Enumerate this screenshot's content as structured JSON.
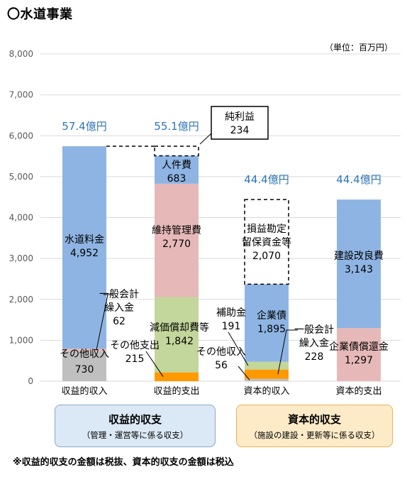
{
  "header": {
    "title": "〇水道事業",
    "unit_label": "（単位：百万円）",
    "footnote": "※収益的収支の金額は税抜、資本的収支の金額は税込"
  },
  "captions": {
    "left": {
      "title": "収益的収支",
      "subtitle": "（管理・運営等に係る収支）"
    },
    "right": {
      "title": "資本的収支",
      "subtitle": "（施設の建設・更新等に係る収支）"
    }
  },
  "colors": {
    "blue": "#8eb4e3",
    "pink": "#e6b9b8",
    "green": "#c3d69b",
    "orange": "#ff9900",
    "gray": "#bfbfbf",
    "total_label": "#2e75b6",
    "grid": "#d9d9d9",
    "axis_text": "#595959"
  },
  "chart_data": {
    "type": "bar",
    "stacked": true,
    "ylim": [
      0,
      8000
    ],
    "yticks": [
      0,
      1000,
      2000,
      3000,
      4000,
      5000,
      6000,
      7000,
      8000
    ],
    "ytick_labels": [
      "0",
      "1,000",
      "2,000",
      "3,000",
      "4,000",
      "5,000",
      "6,000",
      "7,000",
      "8,000"
    ],
    "grid": true,
    "categories": [
      "収益的収入",
      "収益的支出",
      "資本的収入",
      "資本的支出"
    ],
    "totals": [
      "57.4億円",
      "55.1億円",
      "44.4億円",
      "44.4億円"
    ],
    "stacks": [
      [
        {
          "label": "その他収入",
          "value": 730,
          "color": "gray"
        },
        {
          "label": "一般会計繰入金",
          "value": 62,
          "color": "pink"
        },
        {
          "label": "水道料金",
          "value": 4952,
          "color": "blue"
        }
      ],
      [
        {
          "label": "その他支出",
          "value": 215,
          "color": "orange"
        },
        {
          "label": "減価償却費等",
          "value": 1842,
          "color": "green"
        },
        {
          "label": "維持管理費",
          "value": 2770,
          "color": "pink"
        },
        {
          "label": "人件費",
          "value": 683,
          "color": "blue"
        },
        {
          "label": "純利益",
          "value": 234,
          "color": "none"
        }
      ],
      [
        {
          "label": "その他収入",
          "value": 56,
          "color": "gray"
        },
        {
          "label": "一般会計繰入金",
          "value": 228,
          "color": "orange"
        },
        {
          "label": "補助金",
          "value": 191,
          "color": "green"
        },
        {
          "label": "企業債",
          "value": 1895,
          "color": "blue"
        },
        {
          "label": "損益勘定留保資金等",
          "value": 2070,
          "color": "none"
        }
      ],
      [
        {
          "label": "企業債償還金",
          "value": 1297,
          "color": "pink"
        },
        {
          "label": "建設改良費",
          "value": 3143,
          "color": "blue"
        }
      ]
    ],
    "annotations": [
      {
        "lines": [
          "水道料金",
          "4,952"
        ]
      },
      {
        "lines": [
          "一般会計",
          "繰入金",
          "62"
        ]
      },
      {
        "lines": [
          "その他収入",
          "730"
        ]
      },
      {
        "lines": [
          "人件費",
          "683"
        ]
      },
      {
        "lines": [
          "維持管理費",
          "2,770"
        ]
      },
      {
        "lines": [
          "減価償却費等",
          "1,842"
        ]
      },
      {
        "lines": [
          "その他支出",
          "215"
        ]
      },
      {
        "lines": [
          "純利益",
          "234"
        ]
      },
      {
        "lines": [
          "損益勘定",
          "留保資金等",
          "2,070"
        ]
      },
      {
        "lines": [
          "補助金",
          "191"
        ]
      },
      {
        "lines": [
          "企業債",
          "1,895"
        ]
      },
      {
        "lines": [
          "その他収入",
          "56"
        ]
      },
      {
        "lines": [
          "一般会計",
          "繰入金",
          "228"
        ]
      },
      {
        "lines": [
          "建設改良費",
          "3,143"
        ]
      },
      {
        "lines": [
          "企業債償還金",
          "1,297"
        ]
      }
    ]
  }
}
